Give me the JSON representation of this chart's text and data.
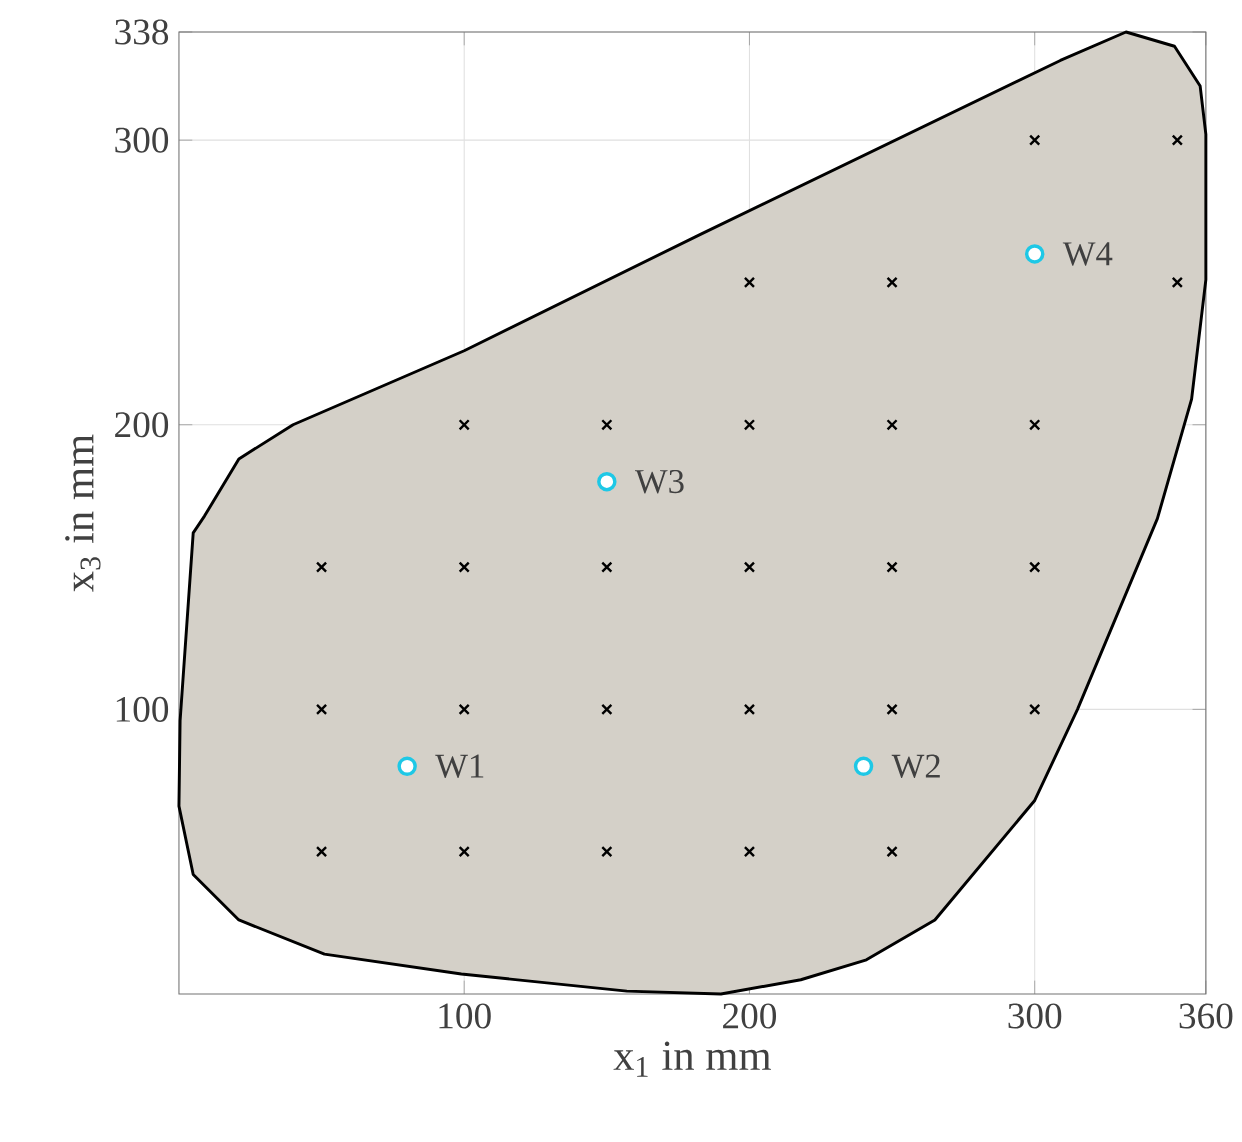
{
  "chart_data": {
    "type": "scatter",
    "xlabel": "x$_{1}$ in mm",
    "ylabel": "x$_{3}$ in mm",
    "xlim": [
      0,
      360
    ],
    "ylim": [
      0,
      338
    ],
    "xticks": [
      100,
      200,
      300,
      360
    ],
    "yticks": [
      100,
      200,
      300,
      338
    ],
    "grid": true,
    "series": [
      {
        "type": "area",
        "color": "#d4d0c8",
        "x": [
          0,
          0.4,
          5,
          9,
          21,
          40,
          100,
          183,
          309,
          332,
          349,
          358,
          360,
          360,
          355,
          343,
          315,
          300,
          265,
          241,
          218,
          190,
          157,
          99,
          51,
          21,
          5
        ],
        "values": [
          66,
          96,
          162,
          168,
          188,
          200,
          226,
          267,
          328,
          338,
          333,
          319,
          302,
          251,
          209,
          167,
          100,
          68,
          26,
          12,
          5,
          0,
          1,
          7,
          14,
          26,
          42
        ]
      },
      {
        "marker": "cross",
        "color": "#000000",
        "x": [
          300,
          350,
          200,
          250,
          350,
          100,
          150,
          200,
          250,
          300,
          50,
          100,
          150,
          200,
          250,
          300,
          50,
          100,
          150,
          200,
          250,
          300,
          50,
          100,
          150,
          200,
          250
        ],
        "values": [
          300,
          300,
          250,
          250,
          250,
          200,
          200,
          200,
          200,
          200,
          150,
          150,
          150,
          150,
          150,
          150,
          100,
          100,
          100,
          100,
          100,
          100,
          50,
          50,
          50,
          50,
          50
        ]
      },
      {
        "marker": "circle",
        "color": "#1ec8e6",
        "x": [
          80,
          240,
          150,
          300
        ],
        "values": [
          80,
          80,
          180,
          260
        ]
      }
    ],
    "annotations": [
      {
        "text": "W1",
        "x": 80,
        "y": 80
      },
      {
        "text": "W2",
        "x": 240,
        "y": 80
      },
      {
        "text": "W3",
        "x": 150,
        "y": 180
      },
      {
        "text": "W4",
        "x": 300,
        "y": 260
      }
    ]
  }
}
